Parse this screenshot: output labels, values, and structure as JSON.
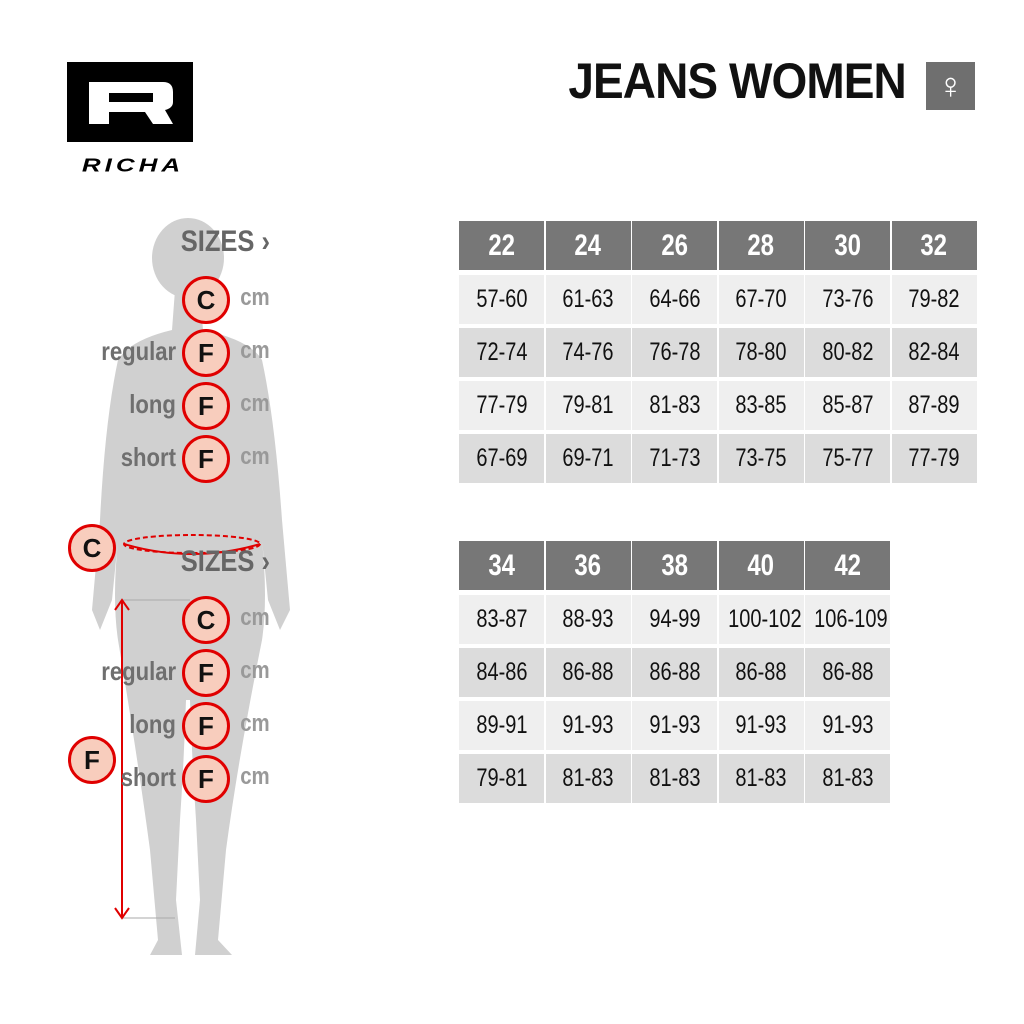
{
  "brand": {
    "logo_letter": "R",
    "logo_word": "RICHA"
  },
  "title": "JEANS WOMEN",
  "gender_icon": "female-symbol-icon",
  "gender_symbol": "♀",
  "colors": {
    "header": "#777777",
    "accent_red": "#e00000",
    "circle_fill": "#f8cdbd",
    "silhouette": "#d0d0d0"
  },
  "figure_markers": {
    "waist": "C",
    "leg": "F"
  },
  "tables": [
    {
      "sizes_label": "SIZES ›",
      "sizes": [
        "22",
        "24",
        "26",
        "28",
        "30",
        "32"
      ],
      "rows": [
        {
          "name": "",
          "marker": "C",
          "unit": "cm",
          "values": [
            "57-60",
            "61-63",
            "64-66",
            "67-70",
            "73-76",
            "79-82"
          ]
        },
        {
          "name": "regular",
          "marker": "F",
          "unit": "cm",
          "values": [
            "72-74",
            "74-76",
            "76-78",
            "78-80",
            "80-82",
            "82-84"
          ]
        },
        {
          "name": "long",
          "marker": "F",
          "unit": "cm",
          "values": [
            "77-79",
            "79-81",
            "81-83",
            "83-85",
            "85-87",
            "87-89"
          ]
        },
        {
          "name": "short",
          "marker": "F",
          "unit": "cm",
          "values": [
            "67-69",
            "69-71",
            "71-73",
            "73-75",
            "75-77",
            "77-79"
          ]
        }
      ]
    },
    {
      "sizes_label": "SIZES ›",
      "sizes": [
        "34",
        "36",
        "38",
        "40",
        "42"
      ],
      "rows": [
        {
          "name": "",
          "marker": "C",
          "unit": "cm",
          "values": [
            "83-87",
            "88-93",
            "94-99",
            "100-102",
            "106-109"
          ]
        },
        {
          "name": "regular",
          "marker": "F",
          "unit": "cm",
          "values": [
            "84-86",
            "86-88",
            "86-88",
            "86-88",
            "86-88"
          ]
        },
        {
          "name": "long",
          "marker": "F",
          "unit": "cm",
          "values": [
            "89-91",
            "91-93",
            "91-93",
            "91-93",
            "91-93"
          ]
        },
        {
          "name": "short",
          "marker": "F",
          "unit": "cm",
          "values": [
            "79-81",
            "81-83",
            "81-83",
            "81-83",
            "81-83"
          ]
        }
      ]
    }
  ]
}
